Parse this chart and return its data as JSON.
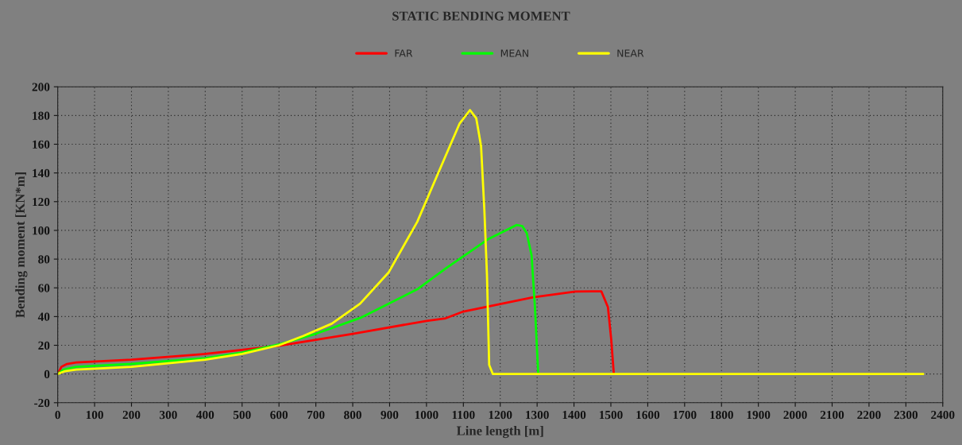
{
  "chart_data": {
    "type": "line",
    "title": "STATIC BENDING MOMENT",
    "xlabel": "Line length [m]",
    "ylabel": "Bending moment [KN*m]",
    "xlim": [
      0,
      2400
    ],
    "xticks": [
      0,
      100,
      200,
      300,
      400,
      500,
      600,
      700,
      800,
      900,
      1000,
      1100,
      1200,
      1300,
      1400,
      1500,
      1600,
      1700,
      1800,
      1900,
      2000,
      2100,
      2200,
      2300,
      2400
    ],
    "ylim": [
      -20,
      200
    ],
    "yticks": [
      -20,
      0,
      20,
      40,
      60,
      80,
      100,
      120,
      140,
      160,
      180,
      200
    ],
    "grid": true,
    "legend": "top",
    "line_style": "solid",
    "marker": "none",
    "series": [
      {
        "name": "FAR",
        "color": "#ff0000",
        "x": [
          0,
          10,
          25,
          50,
          200,
          400,
          600,
          800,
          1000,
          1052,
          1100,
          1289,
          1404,
          1450,
          1474,
          1492,
          1501,
          1508
        ],
        "values": [
          0,
          5,
          7,
          8,
          10,
          14,
          19.6,
          28,
          37,
          38.8,
          43.5,
          53.4,
          57.4,
          57.6,
          57.6,
          46.6,
          24,
          0
        ]
      },
      {
        "name": "MEAN",
        "color": "#00ff00",
        "x": [
          0,
          15,
          50,
          200,
          400,
          500,
          600,
          700,
          820,
          975,
          1052,
          1166,
          1245,
          1260,
          1272,
          1285,
          1294,
          1303
        ],
        "values": [
          0,
          3,
          5,
          7,
          11,
          15,
          20.6,
          28,
          39,
          59,
          73.5,
          93.7,
          103.8,
          103,
          98,
          82.5,
          47,
          0
        ]
      },
      {
        "name": "NEAR",
        "color": "#ffff00",
        "x": [
          0,
          20,
          50,
          200,
          400,
          500,
          600,
          666,
          743,
          820,
          897,
          975,
          1052,
          1090,
          1118,
          1135,
          1148,
          1157,
          1164,
          1170,
          1180,
          2347
        ],
        "values": [
          0,
          2,
          3,
          5,
          10,
          14,
          20,
          26.5,
          35,
          49,
          70.6,
          106,
          152,
          174.5,
          183.8,
          178,
          158.7,
          113.9,
          69,
          6.3,
          0,
          0
        ]
      }
    ]
  }
}
